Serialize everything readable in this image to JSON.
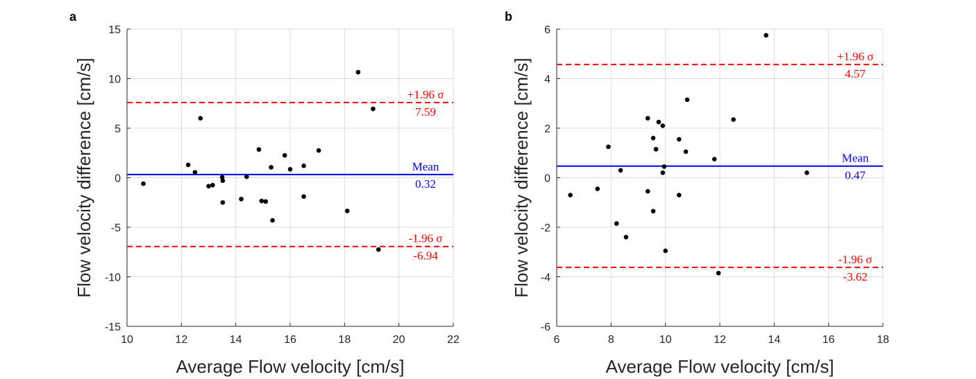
{
  "chart_data": [
    {
      "type": "scatter",
      "panel_label": "a",
      "xlabel": "Average Flow velocity [cm/s]",
      "ylabel": "Flow velocity difference [cm/s]",
      "xlim": [
        10,
        22
      ],
      "ylim": [
        -15,
        15
      ],
      "x_ticks": [
        10,
        12,
        14,
        16,
        18,
        20,
        22
      ],
      "y_ticks": [
        -15,
        -10,
        -5,
        0,
        5,
        10,
        15
      ],
      "grid": true,
      "points": [
        {
          "x": 10.6,
          "y": -0.6
        },
        {
          "x": 12.25,
          "y": 1.3
        },
        {
          "x": 12.5,
          "y": 0.55
        },
        {
          "x": 12.7,
          "y": 6.0
        },
        {
          "x": 13.0,
          "y": -0.85
        },
        {
          "x": 13.15,
          "y": -0.75
        },
        {
          "x": 13.5,
          "y": 0.05
        },
        {
          "x": 13.52,
          "y": -0.3
        },
        {
          "x": 13.52,
          "y": -2.5
        },
        {
          "x": 14.2,
          "y": -2.15
        },
        {
          "x": 14.4,
          "y": 0.1
        },
        {
          "x": 14.85,
          "y": 2.85
        },
        {
          "x": 14.95,
          "y": -2.35
        },
        {
          "x": 15.1,
          "y": -2.4
        },
        {
          "x": 15.3,
          "y": 1.05
        },
        {
          "x": 15.35,
          "y": -4.3
        },
        {
          "x": 15.8,
          "y": 2.25
        },
        {
          "x": 16.0,
          "y": 0.85
        },
        {
          "x": 16.5,
          "y": 1.2
        },
        {
          "x": 16.5,
          "y": -1.9
        },
        {
          "x": 17.05,
          "y": 2.75
        },
        {
          "x": 18.1,
          "y": -3.35
        },
        {
          "x": 18.5,
          "y": 10.65
        },
        {
          "x": 19.05,
          "y": 6.95
        },
        {
          "x": 19.25,
          "y": -7.25
        }
      ],
      "mean": {
        "value": 0.32,
        "label": "Mean",
        "value_label": "0.32",
        "color": "#0000ff"
      },
      "upper_loa": {
        "value": 7.59,
        "label": "+1.96 σ",
        "value_label": "7.59",
        "color": "#ff0000"
      },
      "lower_loa": {
        "value": -6.94,
        "label": "-1.96 σ",
        "value_label": "-6.94",
        "color": "#ff0000"
      }
    },
    {
      "type": "scatter",
      "panel_label": "b",
      "xlabel": "Average Flow velocity [cm/s]",
      "ylabel": "Flow velocity difference [cm/s]",
      "xlim": [
        6,
        18
      ],
      "ylim": [
        -6,
        6
      ],
      "x_ticks": [
        6,
        8,
        10,
        12,
        14,
        16,
        18
      ],
      "y_ticks": [
        -6,
        -4,
        -2,
        0,
        2,
        4,
        6
      ],
      "grid": true,
      "points": [
        {
          "x": 6.5,
          "y": -0.7
        },
        {
          "x": 7.5,
          "y": -0.45
        },
        {
          "x": 7.9,
          "y": 1.25
        },
        {
          "x": 8.2,
          "y": -1.85
        },
        {
          "x": 8.35,
          "y": 0.3
        },
        {
          "x": 8.55,
          "y": -2.4
        },
        {
          "x": 9.35,
          "y": 2.4
        },
        {
          "x": 9.35,
          "y": -0.55
        },
        {
          "x": 9.55,
          "y": 1.6
        },
        {
          "x": 9.55,
          "y": -1.35
        },
        {
          "x": 9.65,
          "y": 1.15
        },
        {
          "x": 9.75,
          "y": 2.25
        },
        {
          "x": 9.9,
          "y": 2.1
        },
        {
          "x": 9.9,
          "y": 0.2
        },
        {
          "x": 9.95,
          "y": 0.45
        },
        {
          "x": 10.0,
          "y": -2.95
        },
        {
          "x": 10.5,
          "y": 1.55
        },
        {
          "x": 10.5,
          "y": -0.7
        },
        {
          "x": 10.75,
          "y": 1.05
        },
        {
          "x": 10.8,
          "y": 3.15
        },
        {
          "x": 11.8,
          "y": 0.75
        },
        {
          "x": 11.95,
          "y": -3.85
        },
        {
          "x": 12.5,
          "y": 2.35
        },
        {
          "x": 13.7,
          "y": 5.75
        },
        {
          "x": 15.2,
          "y": 0.2
        }
      ],
      "mean": {
        "value": 0.47,
        "label": "Mean",
        "value_label": "0.47",
        "color": "#0000ff"
      },
      "upper_loa": {
        "value": 4.57,
        "label": "+1.96 σ",
        "value_label": "4.57",
        "color": "#ff0000"
      },
      "lower_loa": {
        "value": -3.62,
        "label": "-1.96 σ",
        "value_label": "-3.62",
        "color": "#ff0000"
      }
    }
  ]
}
